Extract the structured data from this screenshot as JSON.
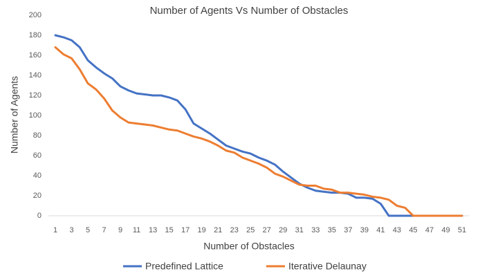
{
  "chart_data": {
    "type": "line",
    "title": "Number of Agents Vs Number of Obstacles",
    "x_label": "Number of Obstacles",
    "y_label": "Number of Agents",
    "categories": [
      "1",
      null,
      "3",
      null,
      "5",
      null,
      "7",
      null,
      "9",
      null,
      "11",
      null,
      "13",
      null,
      "15",
      null,
      "17",
      null,
      "19",
      null,
      "21",
      null,
      "23",
      null,
      "25",
      null,
      "27",
      null,
      "29",
      null,
      "31",
      null,
      "33",
      null,
      "35",
      null,
      "37",
      null,
      "39",
      null,
      "41",
      null,
      "43",
      null,
      "45",
      null,
      "47",
      null,
      "49",
      null,
      "51"
    ],
    "series": [
      {
        "name": "Predefined Lattice",
        "color": "#4472c4",
        "values": [
          180,
          178,
          175,
          168,
          155,
          148,
          142,
          137,
          129,
          125,
          122,
          121,
          120,
          120,
          118,
          115,
          106,
          92,
          87,
          82,
          76,
          70,
          67,
          64,
          62,
          58,
          55,
          51,
          44,
          38,
          32,
          28,
          25,
          24,
          23,
          23,
          22,
          18,
          18,
          17,
          12,
          0,
          0,
          0,
          0,
          0,
          0,
          0,
          0,
          0,
          0
        ]
      },
      {
        "name": "Iterative Delaunay",
        "color": "#ed7d31",
        "values": [
          168,
          161,
          157,
          146,
          132,
          126,
          117,
          105,
          98,
          93,
          92,
          91,
          90,
          88,
          86,
          85,
          82,
          79,
          77,
          74,
          70,
          65,
          63,
          58,
          55,
          52,
          48,
          42,
          39,
          35,
          31,
          30,
          30,
          27,
          26,
          23,
          23,
          22,
          21,
          19,
          18,
          16,
          10,
          8,
          0,
          0,
          0,
          0,
          0,
          0,
          0
        ]
      }
    ],
    "ylim": [
      0,
      200
    ],
    "yticks": [
      0,
      20,
      40,
      60,
      80,
      100,
      120,
      140,
      160,
      180,
      200
    ],
    "grid": false
  }
}
